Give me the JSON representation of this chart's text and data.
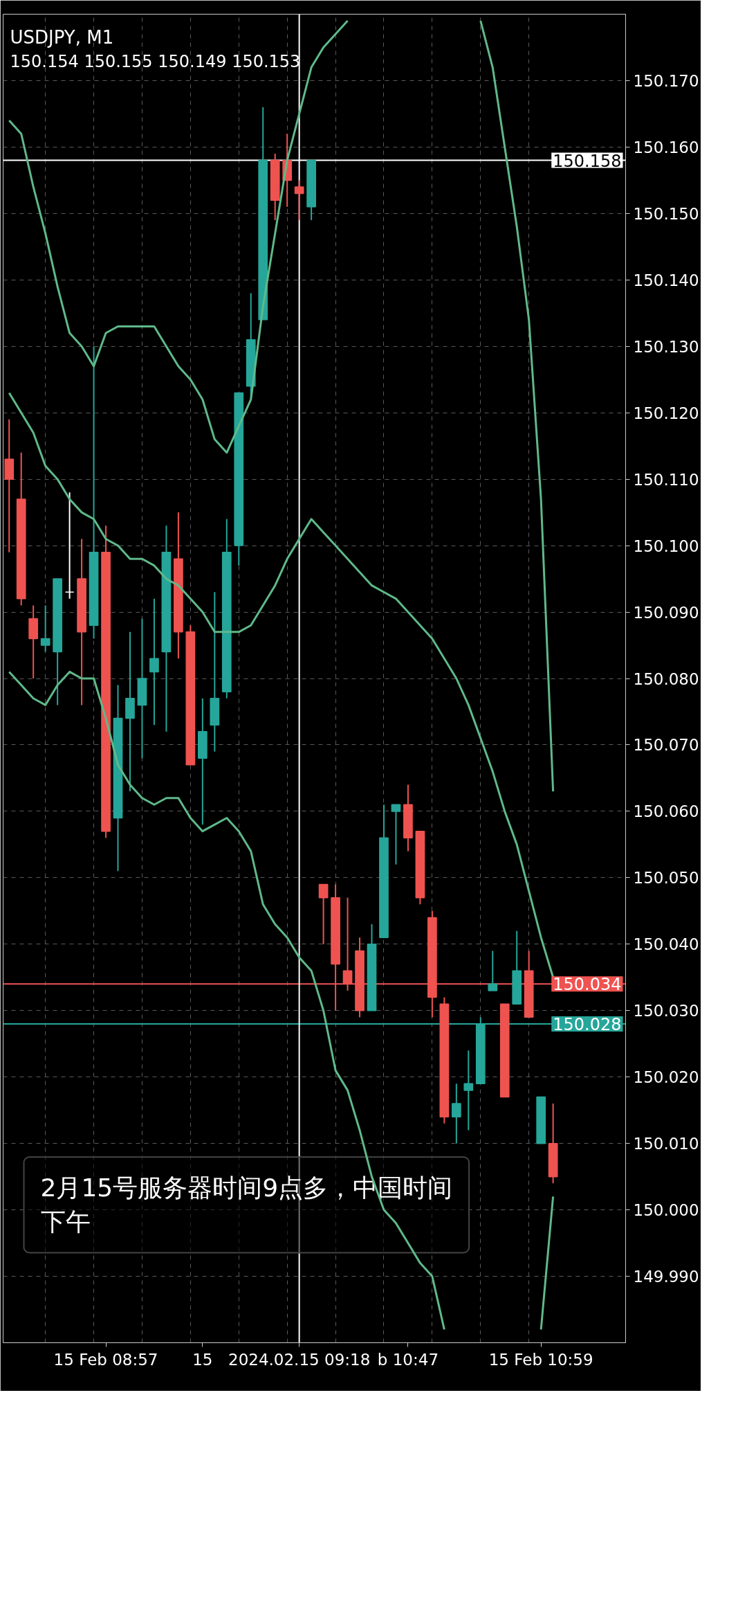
{
  "chart_data": {
    "type": "candlestick",
    "title": "USDJPY, M1",
    "subtitle": "150.154 150.155 150.149 150.153",
    "categories": [
      null,
      null,
      null,
      null,
      null,
      null,
      null,
      null,
      "15 Feb 08:57",
      null,
      null,
      null,
      null,
      null,
      null,
      null,
      "15",
      null,
      null,
      null,
      null,
      null,
      null,
      null,
      "2024.02.15 09:18",
      null,
      null,
      null,
      null,
      null,
      null,
      null,
      null,
      "b 10:47",
      null,
      null,
      null,
      null,
      null,
      null,
      null,
      null,
      null,
      null,
      "15 Feb 10:59",
      null
    ],
    "ohlc": [
      [
        150.113,
        150.119,
        150.099,
        150.11
      ],
      [
        150.107,
        150.114,
        150.091,
        150.092
      ],
      [
        150.089,
        150.091,
        150.08,
        150.086
      ],
      [
        150.085,
        150.091,
        150.084,
        150.086
      ],
      [
        150.084,
        150.095,
        150.076,
        150.095
      ],
      [
        150.093,
        150.108,
        150.092,
        150.093
      ],
      [
        150.095,
        150.101,
        150.076,
        150.087
      ],
      [
        150.088,
        150.13,
        150.086,
        150.099
      ],
      [
        150.099,
        150.103,
        150.056,
        150.057
      ],
      [
        150.059,
        150.079,
        150.051,
        150.074
      ],
      [
        150.074,
        150.087,
        150.063,
        150.077
      ],
      [
        150.076,
        150.089,
        150.068,
        150.08
      ],
      [
        150.081,
        150.092,
        150.073,
        150.083
      ],
      [
        150.084,
        150.103,
        150.072,
        150.099
      ],
      [
        150.098,
        150.105,
        150.083,
        150.087
      ],
      [
        150.087,
        150.088,
        150.067,
        150.067
      ],
      [
        150.068,
        150.077,
        150.058,
        150.072
      ],
      [
        150.073,
        150.093,
        150.069,
        150.077
      ],
      [
        150.078,
        150.104,
        150.077,
        150.099
      ],
      [
        150.1,
        150.123,
        150.097,
        150.123
      ],
      [
        150.124,
        150.138,
        150.122,
        150.131
      ],
      [
        150.134,
        150.166,
        150.134,
        150.158
      ],
      [
        150.158,
        150.159,
        150.149,
        150.152
      ],
      [
        150.158,
        150.162,
        150.151,
        150.155
      ],
      [
        150.154,
        150.155,
        150.149,
        150.153
      ],
      [
        150.151,
        150.158,
        150.149,
        150.158
      ],
      [
        150.049,
        150.049,
        150.04,
        150.047
      ],
      [
        150.047,
        150.049,
        150.03,
        150.037
      ],
      [
        150.036,
        150.047,
        150.033,
        150.034
      ],
      [
        150.039,
        150.041,
        150.029,
        150.03
      ],
      [
        150.03,
        150.043,
        150.03,
        150.04
      ],
      [
        150.041,
        150.061,
        150.041,
        150.056
      ],
      [
        150.06,
        150.061,
        150.052,
        150.061
      ],
      [
        150.061,
        150.064,
        150.054,
        150.056
      ],
      [
        150.057,
        150.057,
        150.046,
        150.047
      ],
      [
        150.044,
        150.045,
        150.029,
        150.032
      ],
      [
        150.031,
        150.032,
        150.013,
        150.014
      ],
      [
        150.014,
        150.019,
        150.01,
        150.016
      ],
      [
        150.018,
        150.024,
        150.012,
        150.019
      ],
      [
        150.019,
        150.029,
        150.019,
        150.028
      ],
      [
        150.033,
        150.039,
        150.033,
        150.034
      ],
      [
        150.031,
        150.031,
        150.017,
        150.017
      ],
      [
        150.031,
        150.042,
        150.031,
        150.036
      ],
      [
        150.036,
        150.039,
        150.029,
        150.029
      ],
      [
        150.01,
        150.017,
        150.01,
        150.017
      ],
      [
        150.01,
        150.016,
        150.004,
        150.005
      ]
    ],
    "colors": [
      "#ef5350",
      "#ef5350",
      "#ef5350",
      "#26a69a",
      "#26a69a",
      "#ffffff",
      "#ef5350",
      "#26a69a",
      "#ef5350",
      "#26a69a",
      "#26a69a",
      "#26a69a",
      "#26a69a",
      "#26a69a",
      "#ef5350",
      "#ef5350",
      "#26a69a",
      "#26a69a",
      "#26a69a",
      "#26a69a",
      "#26a69a",
      "#26a69a",
      "#ef5350",
      "#ef5350",
      "#ef5350",
      "#26a69a",
      "#ef5350",
      "#ef5350",
      "#ef5350",
      "#ef5350",
      "#26a69a",
      "#26a69a",
      "#26a69a",
      "#ef5350",
      "#ef5350",
      "#ef5350",
      "#ef5350",
      "#26a69a",
      "#26a69a",
      "#26a69a",
      "#26a69a",
      "#ef5350",
      "#26a69a",
      "#ef5350",
      "#26a69a",
      "#ef5350"
    ],
    "series": [
      {
        "type": "line",
        "color": "#5fb98a",
        "values": [
          150.164,
          150.162,
          150.154,
          150.147,
          150.139,
          150.132,
          150.13,
          150.127,
          150.132,
          150.133,
          150.133,
          150.133,
          150.133,
          150.13,
          150.127,
          150.125,
          150.122,
          150.116,
          150.114,
          150.118,
          150.122,
          150.136,
          150.147,
          150.158,
          150.165,
          150.172,
          150.175,
          150.177,
          150.179,
          null,
          null,
          null,
          null,
          null,
          null,
          null,
          null,
          null,
          null,
          150.179,
          150.172,
          150.16,
          150.148,
          150.134,
          150.107,
          150.063
        ]
      },
      {
        "type": "line",
        "color": "#5fb98a",
        "values": [
          150.123,
          150.12,
          150.117,
          150.112,
          150.11,
          150.107,
          150.105,
          150.104,
          150.101,
          150.1,
          150.098,
          150.098,
          150.097,
          150.095,
          150.094,
          150.092,
          150.09,
          150.087,
          150.087,
          150.087,
          150.088,
          150.091,
          150.094,
          150.098,
          150.101,
          150.104,
          150.102,
          150.1,
          150.098,
          150.096,
          150.094,
          150.093,
          150.092,
          150.09,
          150.088,
          150.086,
          150.083,
          150.08,
          150.076,
          150.071,
          150.066,
          150.06,
          150.055,
          150.048,
          150.041,
          150.035
        ]
      },
      {
        "type": "line",
        "color": "#5fb98a",
        "values": [
          150.081,
          150.079,
          150.077,
          150.076,
          150.079,
          150.081,
          150.08,
          150.08,
          150.074,
          150.067,
          150.064,
          150.062,
          150.061,
          150.062,
          150.062,
          150.059,
          150.057,
          150.058,
          150.059,
          150.057,
          150.054,
          150.046,
          150.043,
          150.041,
          150.038,
          150.036,
          150.03,
          150.021,
          150.018,
          150.012,
          150.005,
          150.0,
          149.998,
          149.995,
          149.992,
          149.99,
          149.982,
          null,
          null,
          null,
          null,
          null,
          null,
          null,
          149.982,
          150.002
        ]
      }
    ],
    "ylim": [
      149.98,
      150.18
    ],
    "yticks": [
      {
        "value": 149.99,
        "label": "149.990"
      },
      {
        "value": 150.0,
        "label": "150.000"
      },
      {
        "value": 150.01,
        "label": "150.010"
      },
      {
        "value": 150.02,
        "label": "150.020"
      },
      {
        "value": 150.03,
        "label": "150.030"
      },
      {
        "value": 150.04,
        "label": "150.040"
      },
      {
        "value": 150.05,
        "label": "150.050"
      },
      {
        "value": 150.06,
        "label": "150.060"
      },
      {
        "value": 150.07,
        "label": "150.070"
      },
      {
        "value": 150.08,
        "label": "150.080"
      },
      {
        "value": 150.09,
        "label": "150.090"
      },
      {
        "value": 150.1,
        "label": "150.100"
      },
      {
        "value": 150.11,
        "label": "150.110"
      },
      {
        "value": 150.12,
        "label": "150.120"
      },
      {
        "value": 150.13,
        "label": "150.130"
      },
      {
        "value": 150.14,
        "label": "150.140"
      },
      {
        "value": 150.15,
        "label": "150.150"
      },
      {
        "value": 150.16,
        "label": "150.160"
      },
      {
        "value": 150.17,
        "label": "150.170"
      }
    ],
    "ref_lines": [
      {
        "axis": "y",
        "value": 150.158,
        "label": "150.158",
        "color": "#ffffff"
      },
      {
        "axis": "y",
        "value": 150.034,
        "label": "150.034",
        "color": "#ef5350"
      },
      {
        "axis": "y",
        "value": 150.028,
        "label": "150.028",
        "color": "#26a69a"
      },
      {
        "axis": "x",
        "value": "2024.02.15 09:18",
        "color": "#ffffff"
      }
    ],
    "annotations": [
      "2月15号服务器时间9点多，中国时间下午"
    ],
    "grid": true
  }
}
